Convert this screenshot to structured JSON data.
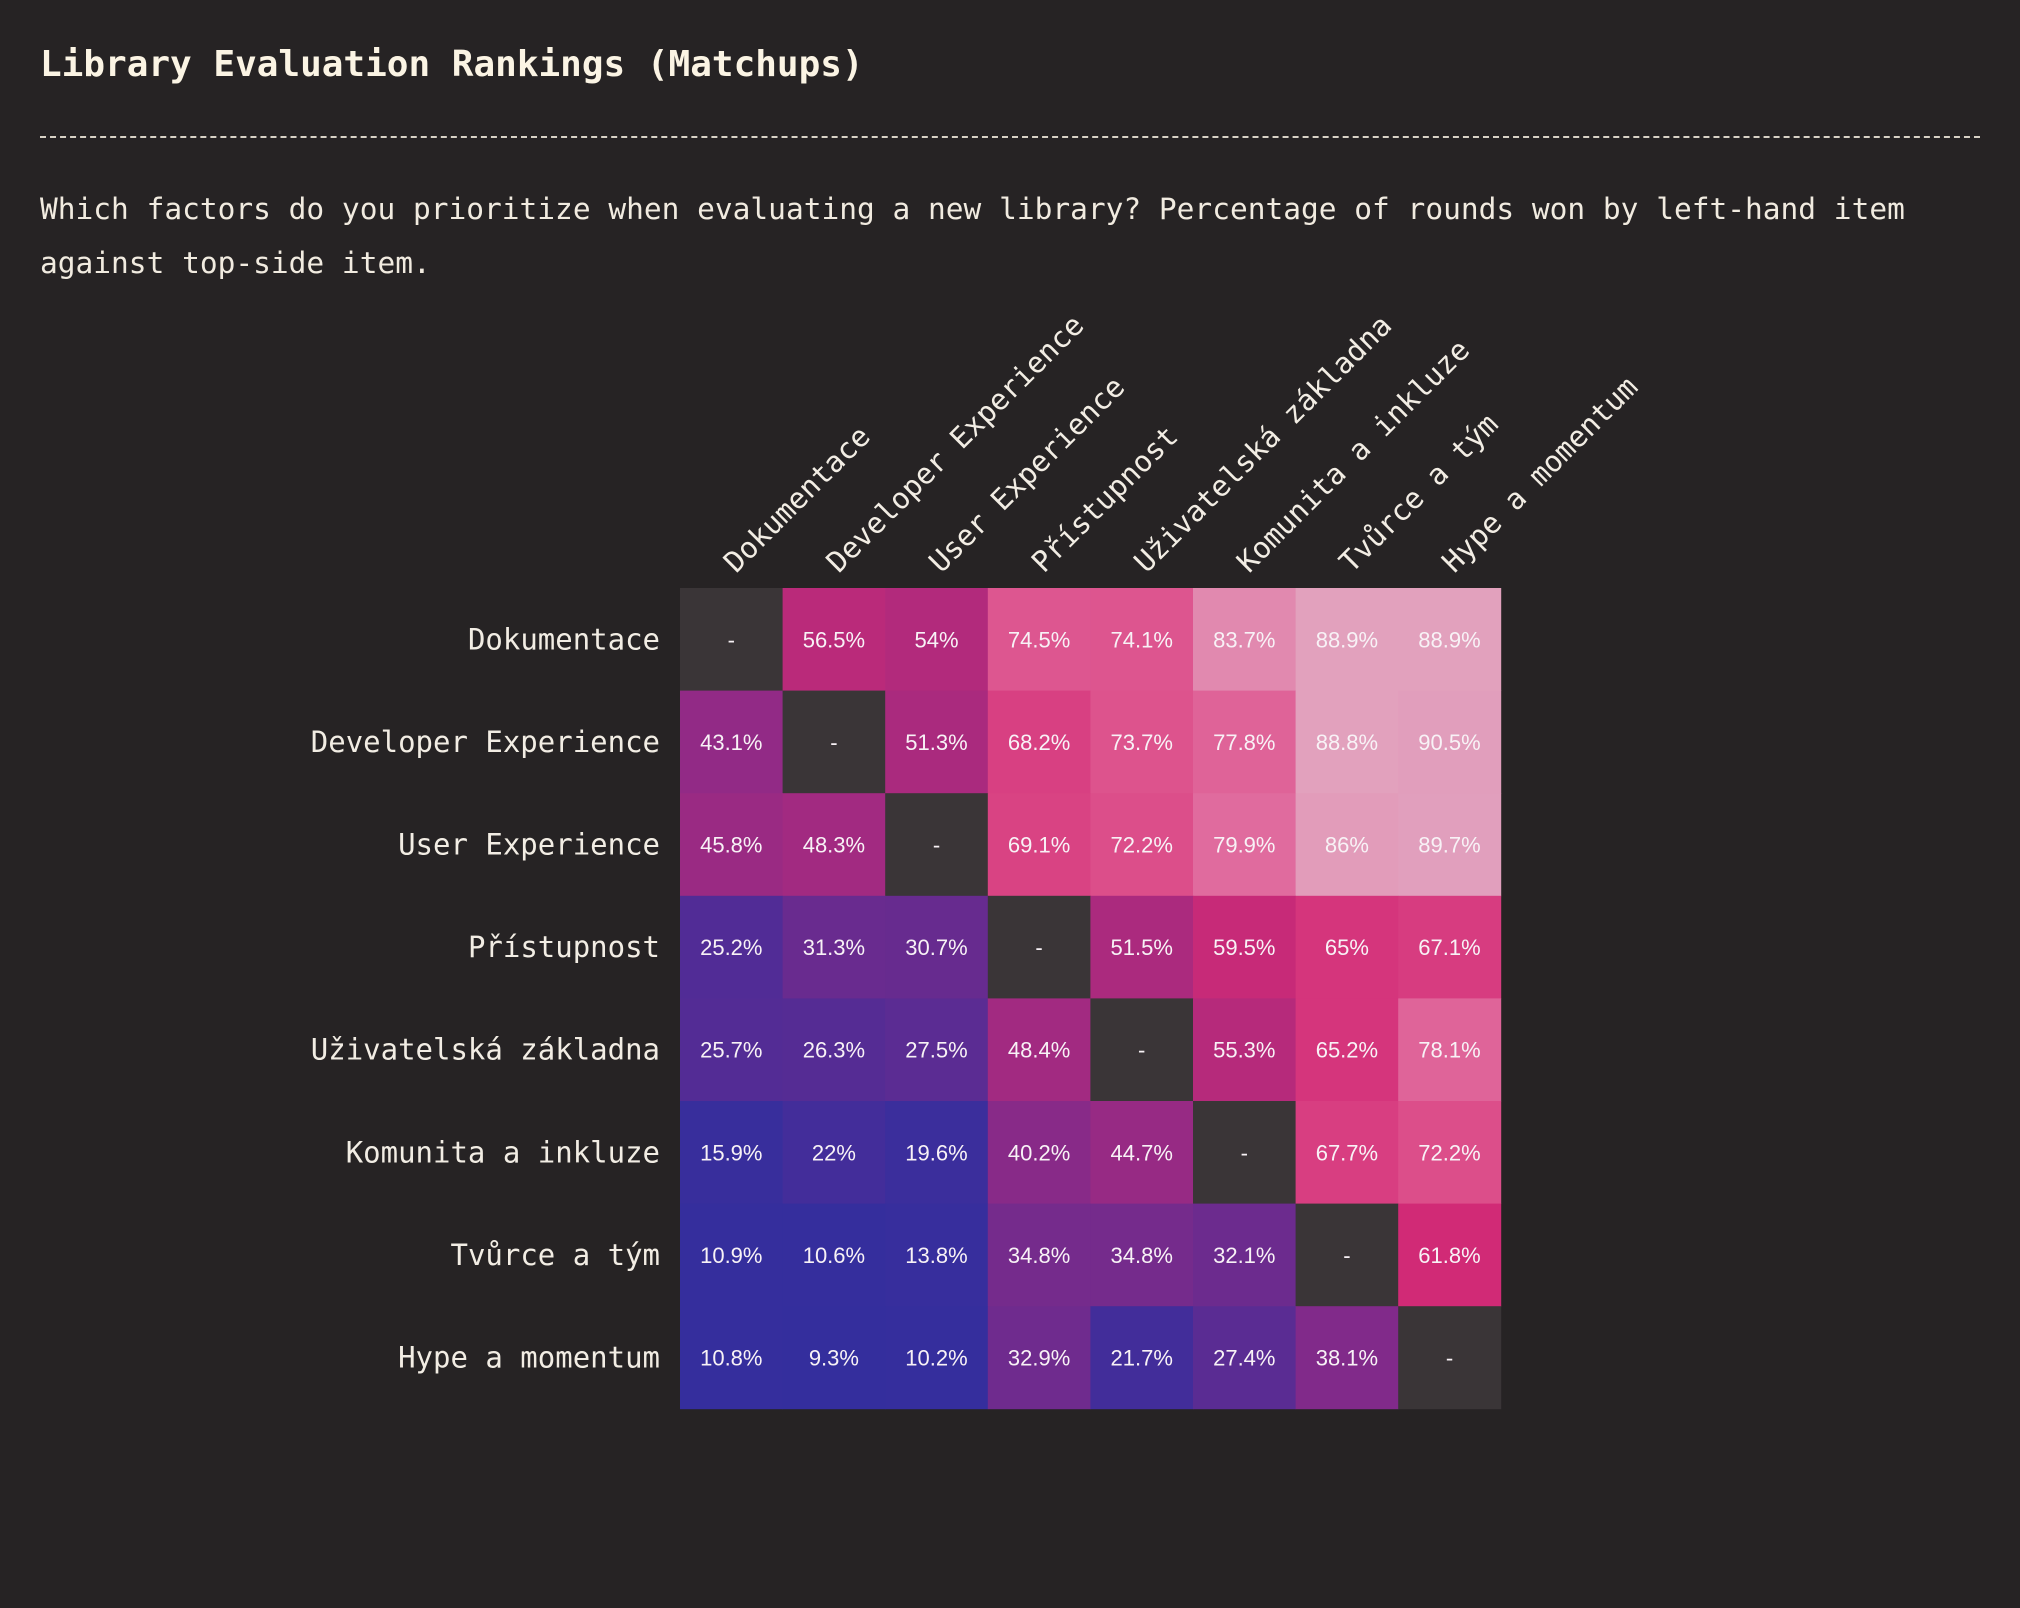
{
  "header": {
    "title": "Library Evaluation Rankings (Matchups)",
    "subtitle": "Which factors do you prioritize when evaluating a new library? Percentage of rounds won by left-hand item against top-side item."
  },
  "colors": {
    "background": "#262324",
    "diagonal": "#3a3537",
    "scale_low": "#2e2e9e",
    "scale_mid": "#d42a78",
    "scale_high": "#e091b4"
  },
  "chart_data": {
    "type": "heatmap",
    "title": "Library Evaluation Rankings (Matchups)",
    "row_labels": [
      "Dokumentace",
      "Developer Experience",
      "User Experience",
      "Přístupnost",
      "Uživatelská základna",
      "Komunita a inkluze",
      "Tvůrce a tým",
      "Hype a momentum"
    ],
    "col_labels": [
      "Dokumentace",
      "Developer Experience",
      "User Experience",
      "Přístupnost",
      "Uživatelská základna",
      "Komunita a inkluze",
      "Tvůrce a tým",
      "Hype a momentum"
    ],
    "unit": "%",
    "diagonal_text": "-",
    "values": [
      [
        null,
        56.5,
        54,
        74.5,
        74.1,
        83.7,
        88.9,
        88.9
      ],
      [
        43.1,
        null,
        51.3,
        68.2,
        73.7,
        77.8,
        88.8,
        90.5
      ],
      [
        45.8,
        48.3,
        null,
        69.1,
        72.2,
        79.9,
        86,
        89.7
      ],
      [
        25.2,
        31.3,
        30.7,
        null,
        51.5,
        59.5,
        65,
        67.1
      ],
      [
        25.7,
        26.3,
        27.5,
        48.4,
        null,
        55.3,
        65.2,
        78.1
      ],
      [
        15.9,
        22,
        19.6,
        40.2,
        44.7,
        null,
        67.7,
        72.2
      ],
      [
        10.9,
        10.6,
        13.8,
        34.8,
        34.8,
        32.1,
        null,
        61.8
      ],
      [
        10.8,
        9.3,
        10.2,
        32.9,
        21.7,
        27.4,
        38.1,
        null
      ]
    ]
  }
}
